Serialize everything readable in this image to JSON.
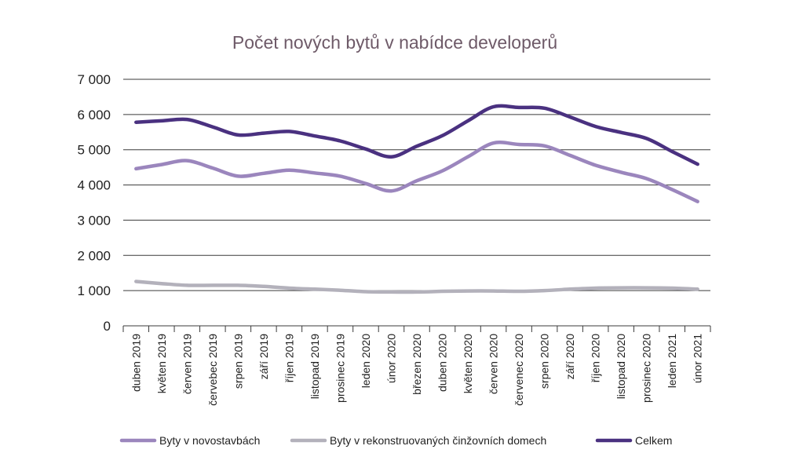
{
  "chart_data": {
    "type": "line",
    "title": "Počet nových bytů v nabídce developerů",
    "categories": [
      "duben 2019",
      "květen 2019",
      "červen 2019",
      "červebec 2019",
      "srpen 2019",
      "září 2019",
      "říjen 2019",
      "listopad 2019",
      "prosinec 2019",
      "leden 2020",
      "únor 2020",
      "březen 2020",
      "duben 2020",
      "květen 2020",
      "červen 2020",
      "červenec 2020",
      "srpen 2020",
      "září 2020",
      "říjen 2020",
      "listopad 2020",
      "prosinec 2020",
      "leden 2021",
      "únor 2021"
    ],
    "yticks": [
      "0",
      "1 000",
      "2 000",
      "3 000",
      "4 000",
      "5 000",
      "6 000",
      "7 000"
    ],
    "ylim": [
      0,
      7000
    ],
    "grid": true,
    "legend_position": "bottom",
    "series": [
      {
        "name": "Byty v novostavbách",
        "color": "#9b86bd",
        "values": [
          4460,
          4580,
          4690,
          4480,
          4250,
          4330,
          4420,
          4340,
          4250,
          4040,
          3830,
          4120,
          4400,
          4800,
          5190,
          5150,
          5110,
          4840,
          4560,
          4360,
          4180,
          3870,
          3530
        ]
      },
      {
        "name": "Byty v rekonstruovaných činžovních domech",
        "color": "#b3b1bb",
        "values": [
          1260,
          1200,
          1150,
          1150,
          1150,
          1120,
          1070,
          1040,
          1010,
          970,
          960,
          960,
          980,
          990,
          990,
          980,
          1000,
          1040,
          1070,
          1080,
          1080,
          1070,
          1040
        ]
      },
      {
        "name": "Celkem",
        "color": "#4a3180",
        "values": [
          5780,
          5820,
          5860,
          5650,
          5420,
          5470,
          5520,
          5390,
          5250,
          5020,
          4800,
          5100,
          5400,
          5820,
          6220,
          6200,
          6180,
          5930,
          5660,
          5490,
          5320,
          4950,
          4590
        ]
      }
    ]
  }
}
